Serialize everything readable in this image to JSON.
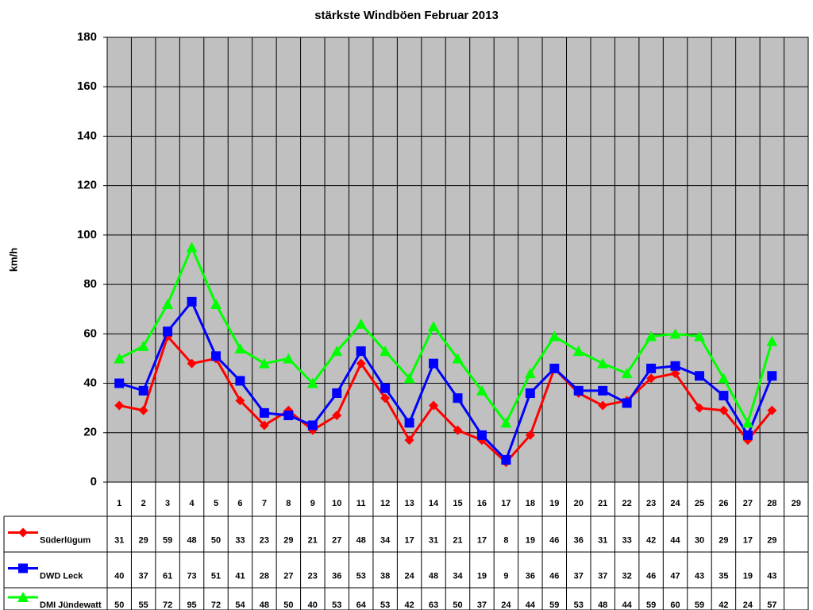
{
  "chart_data": {
    "type": "line",
    "title": "stärkste Windböen Februar 2013",
    "y_label": "km/h",
    "categories": [
      "1",
      "2",
      "3",
      "4",
      "5",
      "6",
      "7",
      "8",
      "9",
      "10",
      "11",
      "12",
      "13",
      "14",
      "15",
      "16",
      "17",
      "18",
      "19",
      "20",
      "21",
      "22",
      "23",
      "24",
      "25",
      "26",
      "27",
      "28",
      "29"
    ],
    "series": [
      {
        "name": "Süderlügum",
        "color": "#ff0000",
        "marker": "diamond",
        "values": [
          31,
          29,
          59,
          48,
          50,
          33,
          23,
          29,
          21,
          27,
          48,
          34,
          17,
          31,
          21,
          17,
          8,
          19,
          46,
          36,
          31,
          33,
          42,
          44,
          30,
          29,
          17,
          29,
          null
        ]
      },
      {
        "name": "DWD Leck",
        "color": "#0000ff",
        "marker": "square",
        "values": [
          40,
          37,
          61,
          73,
          51,
          41,
          28,
          27,
          23,
          36,
          53,
          38,
          24,
          48,
          34,
          19,
          9,
          36,
          46,
          37,
          37,
          32,
          46,
          47,
          43,
          35,
          19,
          43,
          null
        ]
      },
      {
        "name": "DMI Jündewatt",
        "color": "#00ff00",
        "marker": "triangle",
        "values": [
          50,
          55,
          72,
          95,
          72,
          54,
          48,
          50,
          40,
          53,
          64,
          53,
          42,
          63,
          50,
          37,
          24,
          44,
          59,
          53,
          48,
          44,
          59,
          60,
          59,
          42,
          24,
          57,
          null
        ]
      }
    ],
    "ylim": [
      0,
      180
    ],
    "yticks": [
      0,
      20,
      40,
      60,
      80,
      100,
      120,
      140,
      160,
      180
    ],
    "grid": true,
    "plot_background": "#c0c0c0"
  }
}
